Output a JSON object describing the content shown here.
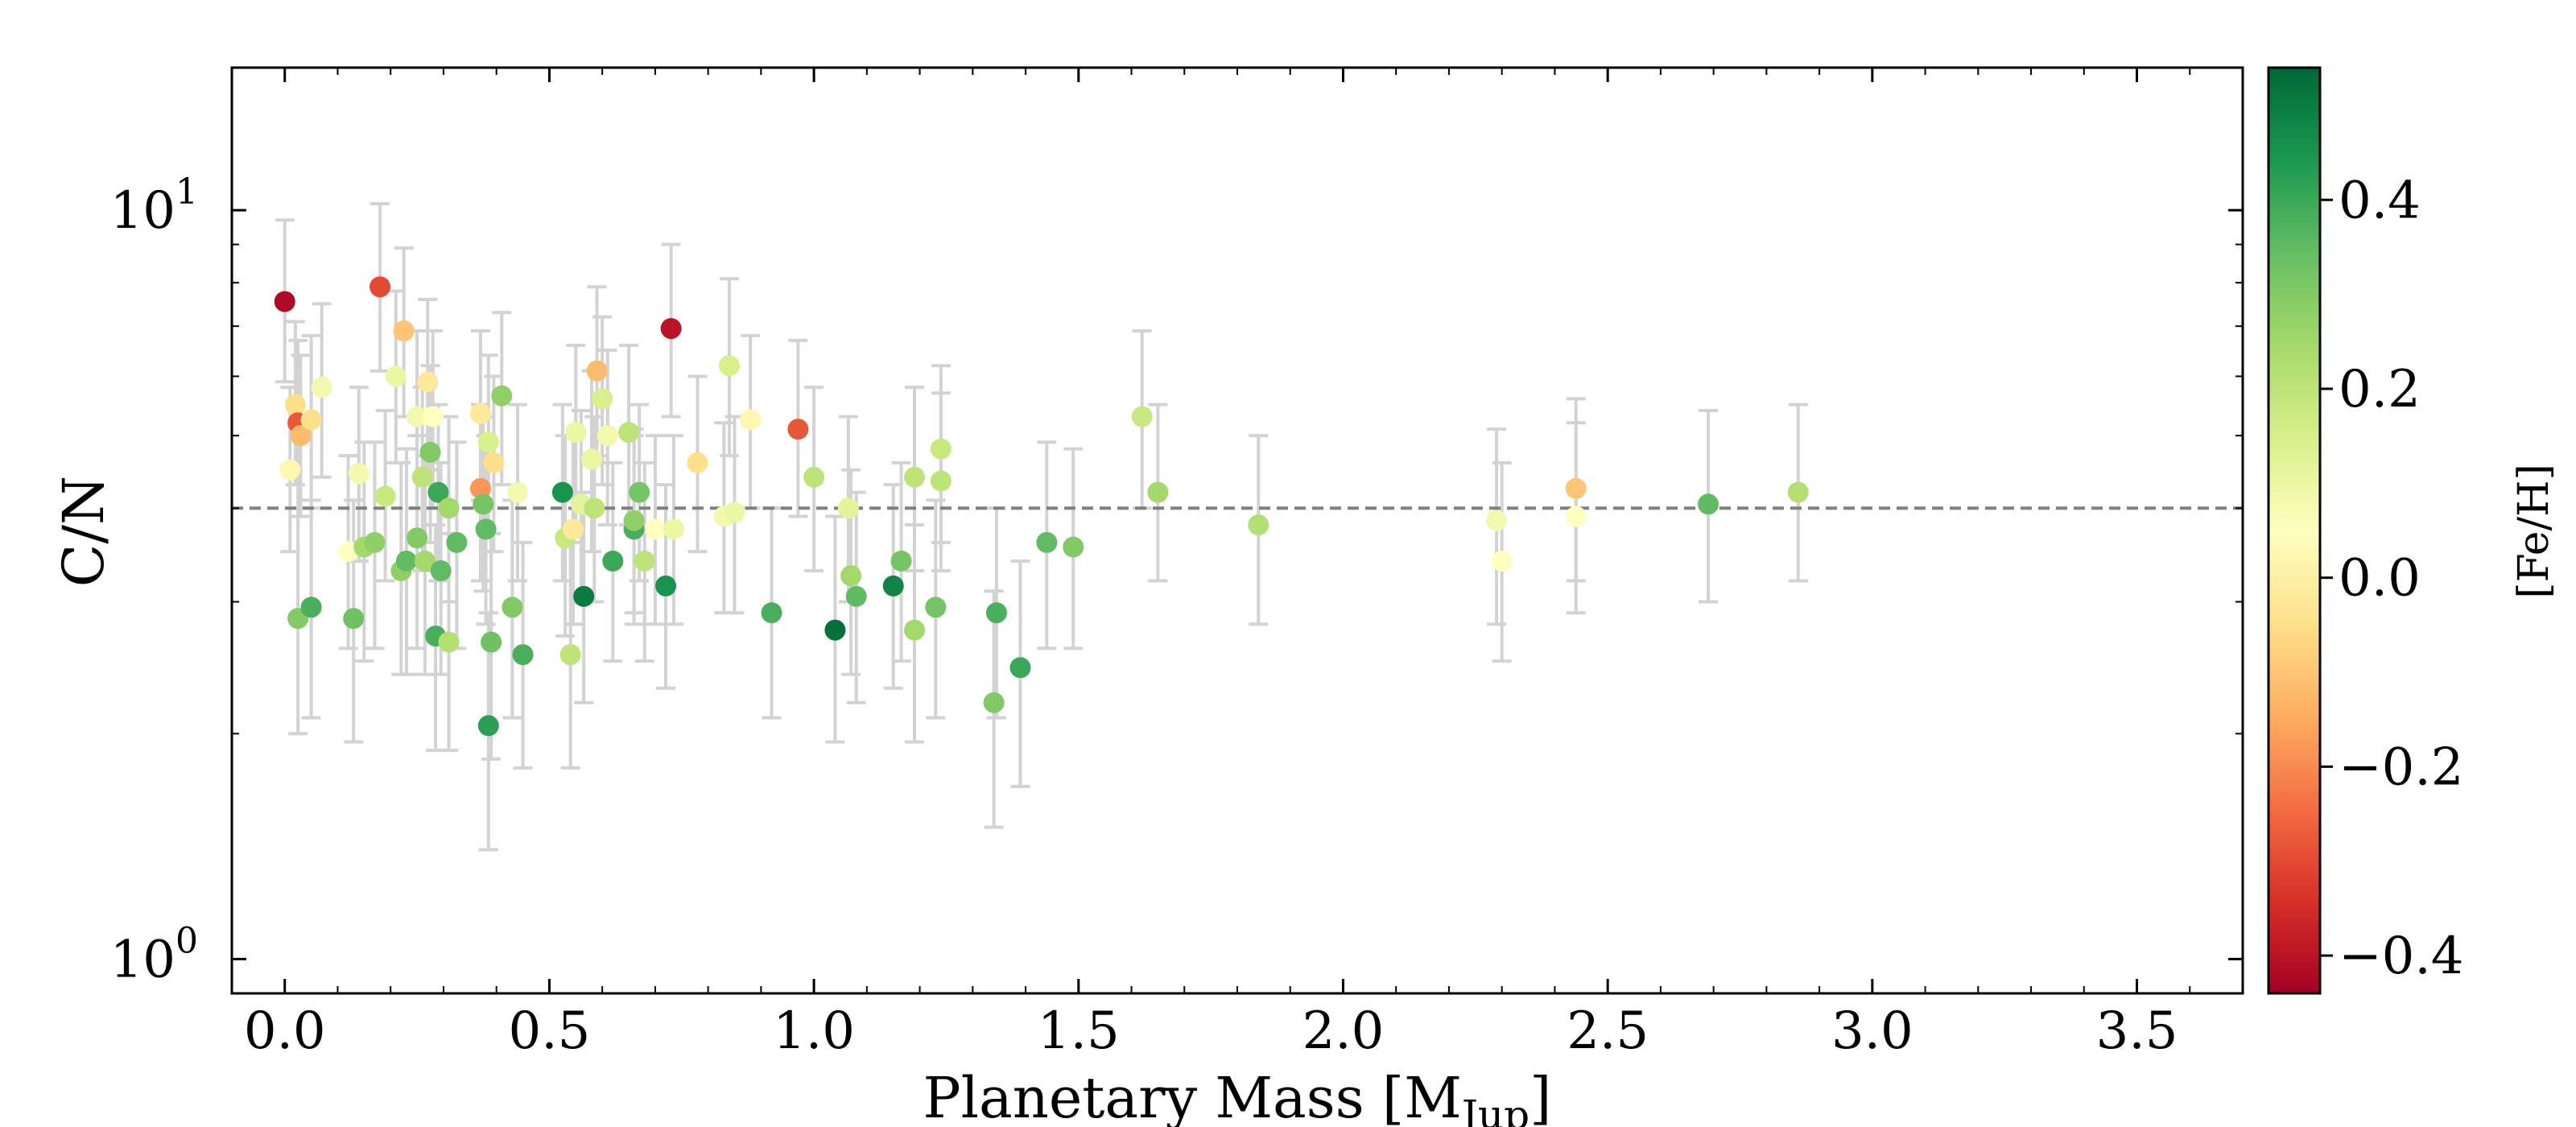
{
  "chart_data": {
    "type": "scatter",
    "xlabel": "Planetary Mass [M",
    "xlabel_sub": "Jup",
    "xlabel_end": "]",
    "ylabel": "C/N",
    "colorbar_label": "[Fe/H]",
    "xlim": [
      -0.1,
      3.7
    ],
    "ylim": [
      0.9,
      15.5
    ],
    "yscale": "log",
    "x_ticks": [
      {
        "value": 0.0,
        "label": "0.0"
      },
      {
        "value": 0.5,
        "label": "0.5"
      },
      {
        "value": 1.0,
        "label": "1.0"
      },
      {
        "value": 1.5,
        "label": "1.5"
      },
      {
        "value": 2.0,
        "label": "2.0"
      },
      {
        "value": 2.5,
        "label": "2.5"
      },
      {
        "value": 3.0,
        "label": "3.0"
      },
      {
        "value": 3.5,
        "label": "3.5"
      }
    ],
    "y_ticks": [
      {
        "value": 1,
        "base": "10",
        "exp": "0"
      },
      {
        "value": 10,
        "base": "10",
        "exp": "1"
      }
    ],
    "reference_line": {
      "y": 4.0,
      "style": "dashed",
      "color": "#808080"
    },
    "colorbar": {
      "min": -0.44,
      "max": 0.54,
      "colormap": "RdYlGn",
      "ticks": [
        {
          "value": 0.4,
          "label": "0.4"
        },
        {
          "value": 0.2,
          "label": "0.2"
        },
        {
          "value": 0.0,
          "label": "0.0"
        },
        {
          "value": -0.2,
          "label": "−0.2"
        },
        {
          "value": -0.4,
          "label": "−0.4"
        }
      ]
    },
    "errorbar_color": "#d3d3d3",
    "points": [
      {
        "x": 0.0,
        "y": 7.55,
        "lo": 5.9,
        "hi": 9.7,
        "feh": -0.42
      },
      {
        "x": 0.01,
        "y": 4.5,
        "lo": 3.5,
        "hi": 5.8,
        "feh": 0.02
      },
      {
        "x": 0.02,
        "y": 5.5,
        "lo": 4.3,
        "hi": 7.1,
        "feh": -0.05
      },
      {
        "x": 0.025,
        "y": 5.2,
        "lo": 4.0,
        "hi": 6.7,
        "feh": -0.28
      },
      {
        "x": 0.03,
        "y": 5.0,
        "lo": 3.9,
        "hi": 6.4,
        "feh": -0.12
      },
      {
        "x": 0.05,
        "y": 5.25,
        "lo": 4.0,
        "hi": 6.8,
        "feh": -0.05
      },
      {
        "x": 0.07,
        "y": 5.8,
        "lo": 4.4,
        "hi": 7.5,
        "feh": 0.08
      },
      {
        "x": 0.025,
        "y": 2.85,
        "lo": 2.0,
        "hi": 4.0,
        "feh": 0.3
      },
      {
        "x": 0.05,
        "y": 2.95,
        "lo": 2.1,
        "hi": 4.1,
        "feh": 0.38
      },
      {
        "x": 0.12,
        "y": 3.5,
        "lo": 2.6,
        "hi": 4.7,
        "feh": 0.05
      },
      {
        "x": 0.13,
        "y": 2.85,
        "lo": 1.95,
        "hi": 4.1,
        "feh": 0.33
      },
      {
        "x": 0.14,
        "y": 4.45,
        "lo": 3.4,
        "hi": 5.8,
        "feh": 0.08
      },
      {
        "x": 0.15,
        "y": 3.55,
        "lo": 2.5,
        "hi": 4.9,
        "feh": 0.25
      },
      {
        "x": 0.17,
        "y": 3.6,
        "lo": 2.6,
        "hi": 4.9,
        "feh": 0.28
      },
      {
        "x": 0.18,
        "y": 7.9,
        "lo": 6.1,
        "hi": 10.2,
        "feh": -0.3
      },
      {
        "x": 0.19,
        "y": 4.15,
        "lo": 3.2,
        "hi": 5.4,
        "feh": 0.18
      },
      {
        "x": 0.21,
        "y": 6.0,
        "lo": 4.6,
        "hi": 7.8,
        "feh": 0.1
      },
      {
        "x": 0.22,
        "y": 3.3,
        "lo": 2.4,
        "hi": 4.6,
        "feh": 0.28
      },
      {
        "x": 0.225,
        "y": 6.9,
        "lo": 5.3,
        "hi": 8.9,
        "feh": -0.1
      },
      {
        "x": 0.23,
        "y": 3.4,
        "lo": 2.4,
        "hi": 4.8,
        "feh": 0.35
      },
      {
        "x": 0.25,
        "y": 5.3,
        "lo": 4.0,
        "hi": 6.9,
        "feh": 0.08
      },
      {
        "x": 0.25,
        "y": 3.65,
        "lo": 2.6,
        "hi": 5.0,
        "feh": 0.3
      },
      {
        "x": 0.26,
        "y": 4.4,
        "lo": 3.3,
        "hi": 5.8,
        "feh": 0.2
      },
      {
        "x": 0.265,
        "y": 3.4,
        "lo": 2.4,
        "hi": 4.7,
        "feh": 0.25
      },
      {
        "x": 0.27,
        "y": 5.9,
        "lo": 4.5,
        "hi": 7.6,
        "feh": -0.02
      },
      {
        "x": 0.275,
        "y": 4.75,
        "lo": 3.6,
        "hi": 6.2,
        "feh": 0.3
      },
      {
        "x": 0.28,
        "y": 5.3,
        "lo": 4.0,
        "hi": 6.9,
        "feh": 0.05
      },
      {
        "x": 0.285,
        "y": 2.7,
        "lo": 1.9,
        "hi": 3.8,
        "feh": 0.38
      },
      {
        "x": 0.29,
        "y": 4.2,
        "lo": 3.2,
        "hi": 5.5,
        "feh": 0.4
      },
      {
        "x": 0.295,
        "y": 3.3,
        "lo": 2.4,
        "hi": 4.6,
        "feh": 0.35
      },
      {
        "x": 0.31,
        "y": 2.65,
        "lo": 1.9,
        "hi": 3.7,
        "feh": 0.22
      },
      {
        "x": 0.31,
        "y": 4.0,
        "lo": 3.0,
        "hi": 5.3,
        "feh": 0.25
      },
      {
        "x": 0.325,
        "y": 3.6,
        "lo": 2.6,
        "hi": 4.9,
        "feh": 0.35
      },
      {
        "x": 0.37,
        "y": 4.25,
        "lo": 3.2,
        "hi": 5.5,
        "feh": -0.18
      },
      {
        "x": 0.37,
        "y": 5.35,
        "lo": 4.1,
        "hi": 6.9,
        "feh": -0.02
      },
      {
        "x": 0.375,
        "y": 4.05,
        "lo": 3.1,
        "hi": 5.3,
        "feh": 0.32
      },
      {
        "x": 0.38,
        "y": 3.75,
        "lo": 2.8,
        "hi": 5.0,
        "feh": 0.35
      },
      {
        "x": 0.385,
        "y": 4.9,
        "lo": 3.7,
        "hi": 6.4,
        "feh": 0.15
      },
      {
        "x": 0.385,
        "y": 2.05,
        "lo": 1.4,
        "hi": 2.9,
        "feh": 0.42
      },
      {
        "x": 0.39,
        "y": 2.65,
        "lo": 1.85,
        "hi": 3.7,
        "feh": 0.33
      },
      {
        "x": 0.395,
        "y": 4.6,
        "lo": 3.5,
        "hi": 6.0,
        "feh": -0.05
      },
      {
        "x": 0.41,
        "y": 5.65,
        "lo": 4.3,
        "hi": 7.3,
        "feh": 0.28
      },
      {
        "x": 0.43,
        "y": 2.95,
        "lo": 2.1,
        "hi": 4.1,
        "feh": 0.3
      },
      {
        "x": 0.44,
        "y": 4.2,
        "lo": 3.2,
        "hi": 5.5,
        "feh": 0.08
      },
      {
        "x": 0.45,
        "y": 2.55,
        "lo": 1.8,
        "hi": 3.6,
        "feh": 0.38
      },
      {
        "x": 0.525,
        "y": 4.2,
        "lo": 3.2,
        "hi": 5.5,
        "feh": 0.45
      },
      {
        "x": 0.53,
        "y": 3.65,
        "lo": 2.7,
        "hi": 5.0,
        "feh": 0.18
      },
      {
        "x": 0.54,
        "y": 2.55,
        "lo": 1.8,
        "hi": 3.6,
        "feh": 0.2
      },
      {
        "x": 0.545,
        "y": 3.75,
        "lo": 2.8,
        "hi": 5.0,
        "feh": -0.02
      },
      {
        "x": 0.55,
        "y": 5.05,
        "lo": 3.8,
        "hi": 6.6,
        "feh": 0.1
      },
      {
        "x": 0.56,
        "y": 4.05,
        "lo": 3.0,
        "hi": 5.4,
        "feh": 0.12
      },
      {
        "x": 0.565,
        "y": 3.05,
        "lo": 2.2,
        "hi": 4.2,
        "feh": 0.5
      },
      {
        "x": 0.58,
        "y": 4.65,
        "lo": 3.5,
        "hi": 6.1,
        "feh": 0.1
      },
      {
        "x": 0.585,
        "y": 4.0,
        "lo": 3.0,
        "hi": 5.3,
        "feh": 0.2
      },
      {
        "x": 0.59,
        "y": 6.1,
        "lo": 4.7,
        "hi": 7.9,
        "feh": -0.12
      },
      {
        "x": 0.6,
        "y": 5.6,
        "lo": 4.3,
        "hi": 7.2,
        "feh": 0.15
      },
      {
        "x": 0.61,
        "y": 5.0,
        "lo": 3.8,
        "hi": 6.5,
        "feh": 0.08
      },
      {
        "x": 0.62,
        "y": 3.4,
        "lo": 2.5,
        "hi": 4.6,
        "feh": 0.4
      },
      {
        "x": 0.65,
        "y": 5.05,
        "lo": 3.8,
        "hi": 6.6,
        "feh": 0.2
      },
      {
        "x": 0.66,
        "y": 3.75,
        "lo": 2.8,
        "hi": 5.0,
        "feh": 0.38
      },
      {
        "x": 0.66,
        "y": 3.85,
        "lo": 2.9,
        "hi": 5.1,
        "feh": 0.28
      },
      {
        "x": 0.67,
        "y": 4.2,
        "lo": 3.2,
        "hi": 5.5,
        "feh": 0.32
      },
      {
        "x": 0.68,
        "y": 3.4,
        "lo": 2.5,
        "hi": 4.6,
        "feh": 0.2
      },
      {
        "x": 0.7,
        "y": 3.75,
        "lo": 2.8,
        "hi": 5.0,
        "feh": 0.05
      },
      {
        "x": 0.72,
        "y": 3.15,
        "lo": 2.3,
        "hi": 4.3,
        "feh": 0.45
      },
      {
        "x": 0.73,
        "y": 6.95,
        "lo": 5.3,
        "hi": 9.0,
        "feh": -0.4
      },
      {
        "x": 0.735,
        "y": 3.75,
        "lo": 2.8,
        "hi": 5.0,
        "feh": 0.1
      },
      {
        "x": 0.78,
        "y": 4.6,
        "lo": 3.5,
        "hi": 6.0,
        "feh": -0.05
      },
      {
        "x": 0.83,
        "y": 3.9,
        "lo": 2.9,
        "hi": 5.2,
        "feh": 0.08
      },
      {
        "x": 0.84,
        "y": 6.2,
        "lo": 4.7,
        "hi": 8.1,
        "feh": 0.15
      },
      {
        "x": 0.85,
        "y": 3.95,
        "lo": 2.9,
        "hi": 5.3,
        "feh": 0.1
      },
      {
        "x": 0.88,
        "y": 5.25,
        "lo": 4.0,
        "hi": 6.8,
        "feh": 0.02
      },
      {
        "x": 0.92,
        "y": 2.9,
        "lo": 2.1,
        "hi": 4.0,
        "feh": 0.38
      },
      {
        "x": 0.97,
        "y": 5.1,
        "lo": 3.9,
        "hi": 6.7,
        "feh": -0.28
      },
      {
        "x": 1.0,
        "y": 4.4,
        "lo": 3.3,
        "hi": 5.8,
        "feh": 0.2
      },
      {
        "x": 1.04,
        "y": 2.75,
        "lo": 1.95,
        "hi": 3.9,
        "feh": 0.52
      },
      {
        "x": 1.065,
        "y": 4.0,
        "lo": 3.0,
        "hi": 5.3,
        "feh": 0.12
      },
      {
        "x": 1.07,
        "y": 3.25,
        "lo": 2.4,
        "hi": 4.5,
        "feh": 0.25
      },
      {
        "x": 1.08,
        "y": 3.05,
        "lo": 2.2,
        "hi": 4.2,
        "feh": 0.35
      },
      {
        "x": 1.15,
        "y": 3.15,
        "lo": 2.3,
        "hi": 4.3,
        "feh": 0.48
      },
      {
        "x": 1.165,
        "y": 3.4,
        "lo": 2.5,
        "hi": 4.6,
        "feh": 0.32
      },
      {
        "x": 1.19,
        "y": 4.4,
        "lo": 3.3,
        "hi": 5.8,
        "feh": 0.2
      },
      {
        "x": 1.19,
        "y": 2.75,
        "lo": 1.95,
        "hi": 3.8,
        "feh": 0.25
      },
      {
        "x": 1.23,
        "y": 2.95,
        "lo": 2.1,
        "hi": 4.1,
        "feh": 0.32
      },
      {
        "x": 1.24,
        "y": 4.35,
        "lo": 3.3,
        "hi": 5.7,
        "feh": 0.2
      },
      {
        "x": 1.24,
        "y": 4.8,
        "lo": 3.6,
        "hi": 6.2,
        "feh": 0.18
      },
      {
        "x": 1.34,
        "y": 2.2,
        "lo": 1.5,
        "hi": 3.1,
        "feh": 0.3
      },
      {
        "x": 1.345,
        "y": 2.9,
        "lo": 2.1,
        "hi": 4.0,
        "feh": 0.38
      },
      {
        "x": 1.39,
        "y": 2.45,
        "lo": 1.7,
        "hi": 3.4,
        "feh": 0.4
      },
      {
        "x": 1.44,
        "y": 3.6,
        "lo": 2.6,
        "hi": 4.9,
        "feh": 0.35
      },
      {
        "x": 1.49,
        "y": 3.55,
        "lo": 2.6,
        "hi": 4.8,
        "feh": 0.3
      },
      {
        "x": 1.62,
        "y": 5.3,
        "lo": 4.0,
        "hi": 6.9,
        "feh": 0.18
      },
      {
        "x": 1.65,
        "y": 4.2,
        "lo": 3.2,
        "hi": 5.5,
        "feh": 0.25
      },
      {
        "x": 1.84,
        "y": 3.8,
        "lo": 2.8,
        "hi": 5.0,
        "feh": 0.22
      },
      {
        "x": 2.29,
        "y": 3.85,
        "lo": 2.8,
        "hi": 5.1,
        "feh": 0.08
      },
      {
        "x": 2.3,
        "y": 3.4,
        "lo": 2.5,
        "hi": 4.6,
        "feh": 0.05
      },
      {
        "x": 2.44,
        "y": 4.25,
        "lo": 3.2,
        "hi": 5.6,
        "feh": -0.1
      },
      {
        "x": 2.44,
        "y": 3.9,
        "lo": 2.9,
        "hi": 5.2,
        "feh": 0.05
      },
      {
        "x": 2.69,
        "y": 4.05,
        "lo": 3.0,
        "hi": 5.4,
        "feh": 0.35
      },
      {
        "x": 2.86,
        "y": 4.2,
        "lo": 3.2,
        "hi": 5.5,
        "feh": 0.22
      }
    ]
  }
}
